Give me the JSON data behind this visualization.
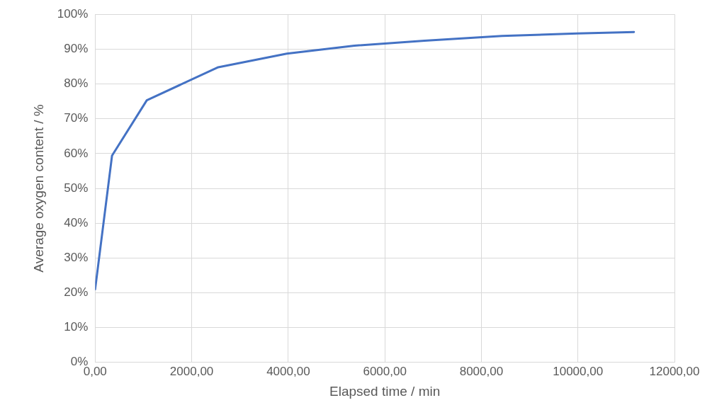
{
  "chart_data": {
    "type": "line",
    "xlabel": "Elapsed time / min",
    "ylabel": "Average oxygen content / %",
    "x": [
      0,
      350,
      1070,
      2550,
      3970,
      5370,
      6820,
      8430,
      9985,
      11160
    ],
    "series": [
      {
        "color": "#4472c4",
        "values": [
          21,
          59.4,
          75.3,
          84.8,
          88.7,
          91,
          92.4,
          93.8,
          94.5,
          94.9
        ]
      }
    ],
    "xlim": [
      0,
      12000
    ],
    "xticks": [
      {
        "value": 0,
        "label": "0,00"
      },
      {
        "value": 2000,
        "label": "2000,00"
      },
      {
        "value": 4000,
        "label": "4000,00"
      },
      {
        "value": 6000,
        "label": "6000,00"
      },
      {
        "value": 8000,
        "label": "8000,00"
      },
      {
        "value": 10000,
        "label": "10000,00"
      },
      {
        "value": 12000,
        "label": "12000,00"
      }
    ],
    "ylim": [
      0,
      100
    ],
    "yticks": [
      {
        "value": 0,
        "label": "0%"
      },
      {
        "value": 10,
        "label": "10%"
      },
      {
        "value": 20,
        "label": "20%"
      },
      {
        "value": 30,
        "label": "30%"
      },
      {
        "value": 40,
        "label": "40%"
      },
      {
        "value": 50,
        "label": "50%"
      },
      {
        "value": 60,
        "label": "60%"
      },
      {
        "value": 70,
        "label": "70%"
      },
      {
        "value": 80,
        "label": "80%"
      },
      {
        "value": 90,
        "label": "90%"
      },
      {
        "value": 100,
        "label": "100%"
      }
    ],
    "grid": true,
    "legend": false,
    "marker": "none",
    "line_style": "solid"
  }
}
